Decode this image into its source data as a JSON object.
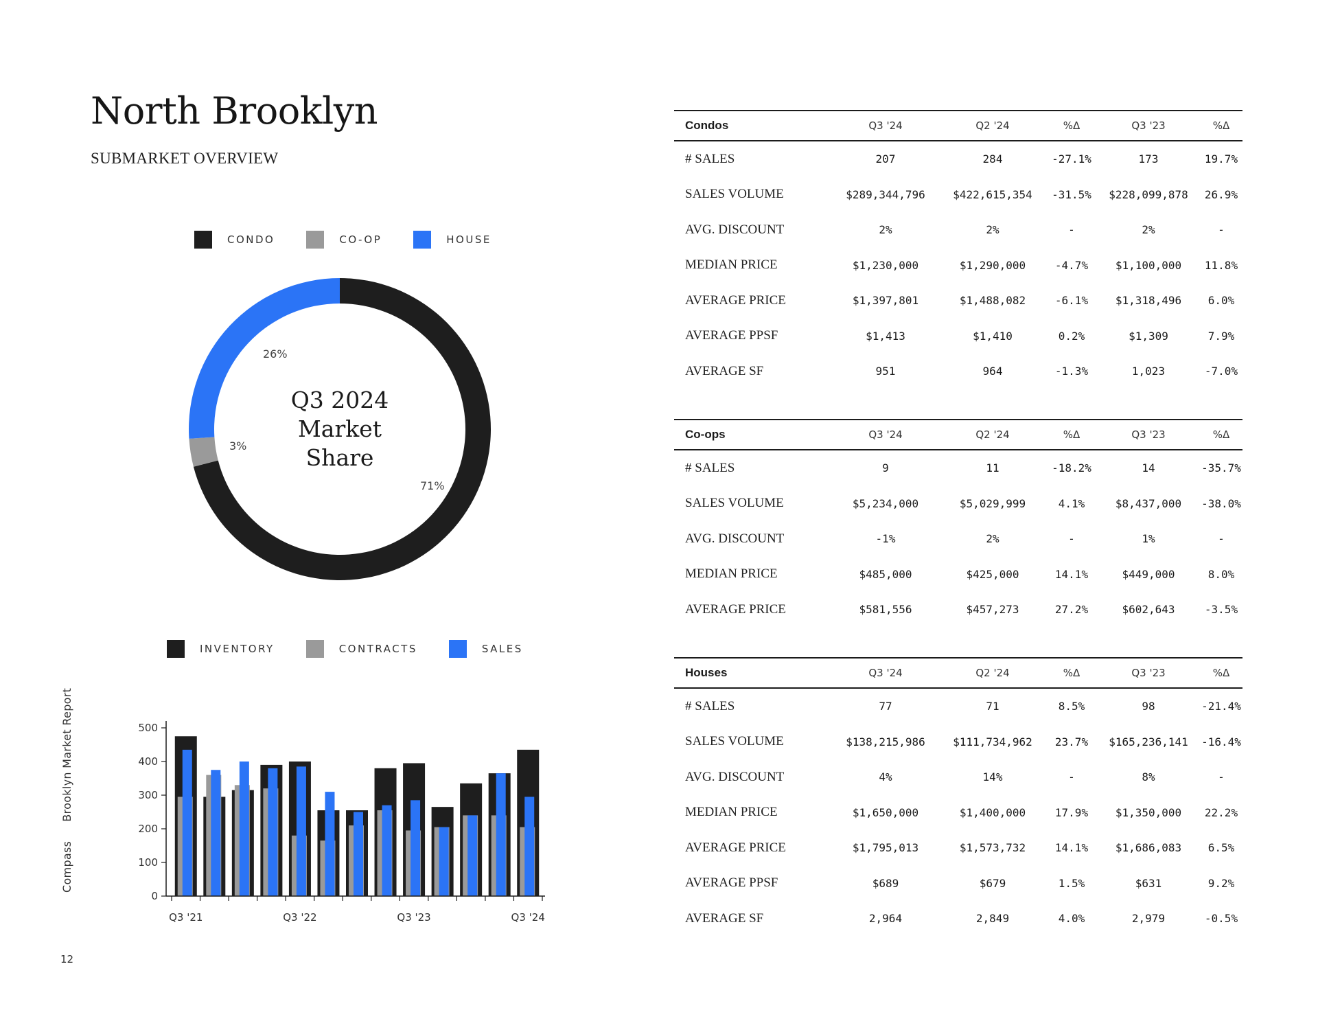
{
  "title": "North Brooklyn",
  "subtitle": "SUBMARKET OVERVIEW",
  "donut": {
    "legend": [
      {
        "label": "CONDO",
        "color": "#1e1e1e"
      },
      {
        "label": "CO-OP",
        "color": "#9a9a9a"
      },
      {
        "label": "HOUSE",
        "color": "#2b74f6"
      }
    ],
    "center_lines": [
      "Q3 2024",
      "Market",
      "Share"
    ],
    "slices": [
      {
        "name": "Condo",
        "value": 71,
        "label": "71%",
        "color": "#1e1e1e"
      },
      {
        "name": "Co-op",
        "value": 3,
        "label": "3%",
        "color": "#9a9a9a"
      },
      {
        "name": "House",
        "value": 26,
        "label": "26%",
        "color": "#2b74f6"
      }
    ]
  },
  "bar_legend": [
    {
      "label": "INVENTORY",
      "color": "#1e1e1e"
    },
    {
      "label": "CONTRACTS",
      "color": "#9a9a9a"
    },
    {
      "label": "SALES",
      "color": "#2b74f6"
    }
  ],
  "chart_data": [
    {
      "type": "pie",
      "categories": [
        "CONDO",
        "CO-OP",
        "HOUSE"
      ],
      "values": [
        71,
        3,
        26
      ],
      "title": "Q3 2024 Market Share",
      "legend": "top"
    },
    {
      "type": "bar",
      "x": [
        "Q3 '21",
        "Q4 '21",
        "Q1 '22",
        "Q2 '22",
        "Q3 '22",
        "Q4 '22",
        "Q1 '23",
        "Q2 '23",
        "Q3 '23",
        "Q4 '23",
        "Q1 '24",
        "Q2 '24",
        "Q3 '24"
      ],
      "tick_labels": [
        "Q3 '21",
        "Q3 '22",
        "Q3 '23",
        "Q3 '24"
      ],
      "series": [
        {
          "name": "INVENTORY",
          "color": "#1e1e1e",
          "values": [
            475,
            295,
            315,
            390,
            400,
            255,
            255,
            380,
            395,
            265,
            335,
            365,
            435
          ]
        },
        {
          "name": "CONTRACTS",
          "color": "#9a9a9a",
          "values": [
            295,
            360,
            330,
            320,
            180,
            165,
            210,
            255,
            195,
            205,
            240,
            240,
            205
          ]
        },
        {
          "name": "SALES",
          "color": "#2b74f6",
          "values": [
            435,
            375,
            400,
            380,
            385,
            310,
            250,
            270,
            285,
            205,
            240,
            365,
            295
          ]
        }
      ],
      "ylim": [
        0,
        500
      ],
      "yticks": [
        0,
        100,
        200,
        300,
        400,
        500
      ],
      "legend": "top",
      "grid": false
    }
  ],
  "side_text": {
    "brand": "Compass",
    "report": "Brooklyn Market Report"
  },
  "page_number": "12",
  "tables": {
    "condos": {
      "headers": [
        "Condos",
        "Q3 '24",
        "Q2 '24",
        "%Δ",
        "Q3 '23",
        "%Δ"
      ],
      "rows": [
        [
          "# SALES",
          "207",
          "284",
          "-27.1%",
          "173",
          "19.7%"
        ],
        [
          "SALES VOLUME",
          "$289,344,796",
          "$422,615,354",
          "-31.5%",
          "$228,099,878",
          "26.9%"
        ],
        [
          "AVG. DISCOUNT",
          "2%",
          "2%",
          "-",
          "2%",
          "-"
        ],
        [
          "MEDIAN PRICE",
          "$1,230,000",
          "$1,290,000",
          "-4.7%",
          "$1,100,000",
          "11.8%"
        ],
        [
          "AVERAGE PRICE",
          "$1,397,801",
          "$1,488,082",
          "-6.1%",
          "$1,318,496",
          "6.0%"
        ],
        [
          "AVERAGE PPSF",
          "$1,413",
          "$1,410",
          "0.2%",
          "$1,309",
          "7.9%"
        ],
        [
          "AVERAGE SF",
          "951",
          "964",
          "-1.3%",
          "1,023",
          "-7.0%"
        ]
      ]
    },
    "coops": {
      "headers": [
        "Co-ops",
        "Q3 '24",
        "Q2 '24",
        "%Δ",
        "Q3 '23",
        "%Δ"
      ],
      "rows": [
        [
          "# SALES",
          "9",
          "11",
          "-18.2%",
          "14",
          "-35.7%"
        ],
        [
          "SALES VOLUME",
          "$5,234,000",
          "$5,029,999",
          "4.1%",
          "$8,437,000",
          "-38.0%"
        ],
        [
          "AVG. DISCOUNT",
          "-1%",
          "2%",
          "-",
          "1%",
          "-"
        ],
        [
          "MEDIAN PRICE",
          "$485,000",
          "$425,000",
          "14.1%",
          "$449,000",
          "8.0%"
        ],
        [
          "AVERAGE PRICE",
          "$581,556",
          "$457,273",
          "27.2%",
          "$602,643",
          "-3.5%"
        ]
      ]
    },
    "houses": {
      "headers": [
        "Houses",
        "Q3 '24",
        "Q2 '24",
        "%Δ",
        "Q3 '23",
        "%Δ"
      ],
      "rows": [
        [
          "# SALES",
          "77",
          "71",
          "8.5%",
          "98",
          "-21.4%"
        ],
        [
          "SALES VOLUME",
          "$138,215,986",
          "$111,734,962",
          "23.7%",
          "$165,236,141",
          "-16.4%"
        ],
        [
          "AVG. DISCOUNT",
          "4%",
          "14%",
          "-",
          "8%",
          "-"
        ],
        [
          "MEDIAN PRICE",
          "$1,650,000",
          "$1,400,000",
          "17.9%",
          "$1,350,000",
          "22.2%"
        ],
        [
          "AVERAGE PRICE",
          "$1,795,013",
          "$1,573,732",
          "14.1%",
          "$1,686,083",
          "6.5%"
        ],
        [
          "AVERAGE PPSF",
          "$689",
          "$679",
          "1.5%",
          "$631",
          "9.2%"
        ],
        [
          "AVERAGE SF",
          "2,964",
          "2,849",
          "4.0%",
          "2,979",
          "-0.5%"
        ]
      ]
    }
  }
}
